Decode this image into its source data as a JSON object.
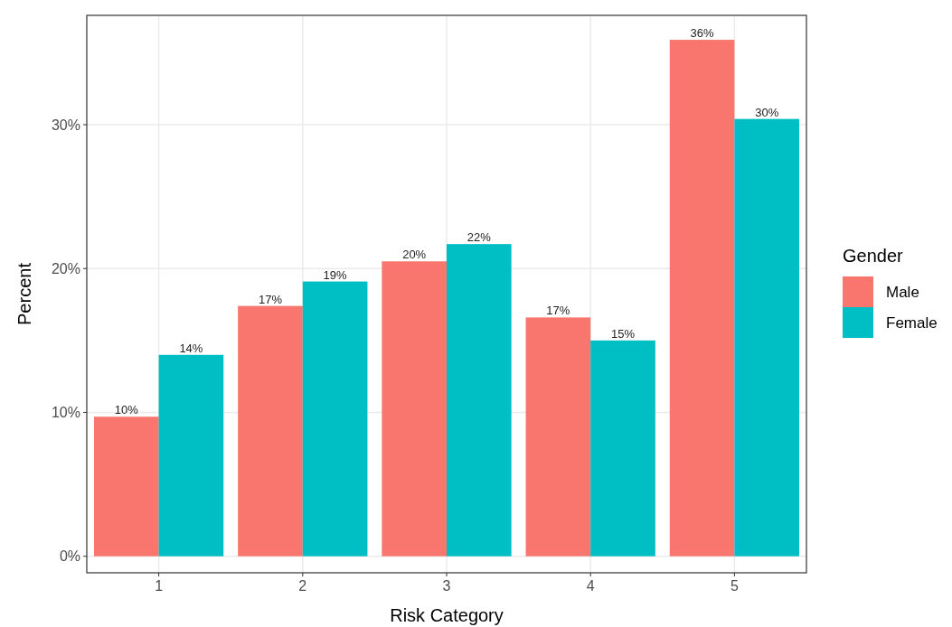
{
  "chart_data": {
    "type": "bar",
    "xlabel": "Risk Category",
    "ylabel": "Percent",
    "legend_title": "Gender",
    "categories": [
      "1",
      "2",
      "3",
      "4",
      "5"
    ],
    "series": [
      {
        "name": "Male",
        "color": "#f8766d",
        "values": [
          9.7,
          17.4,
          20.5,
          16.6,
          35.9
        ],
        "value_labels": [
          "10%",
          "17%",
          "20%",
          "17%",
          "36%"
        ]
      },
      {
        "name": "Female",
        "color": "#00bfc4",
        "values": [
          14.0,
          19.1,
          21.7,
          15.0,
          30.4
        ],
        "value_labels": [
          "14%",
          "19%",
          "22%",
          "15%",
          "30%"
        ]
      }
    ],
    "ylim": [
      -1.15,
      37.6
    ],
    "yticks": [
      {
        "value": 0,
        "label": "0%"
      },
      {
        "value": 10,
        "label": "10%"
      },
      {
        "value": 20,
        "label": "20%"
      },
      {
        "value": 30,
        "label": "30%"
      }
    ],
    "grid": true,
    "legend": "right"
  }
}
